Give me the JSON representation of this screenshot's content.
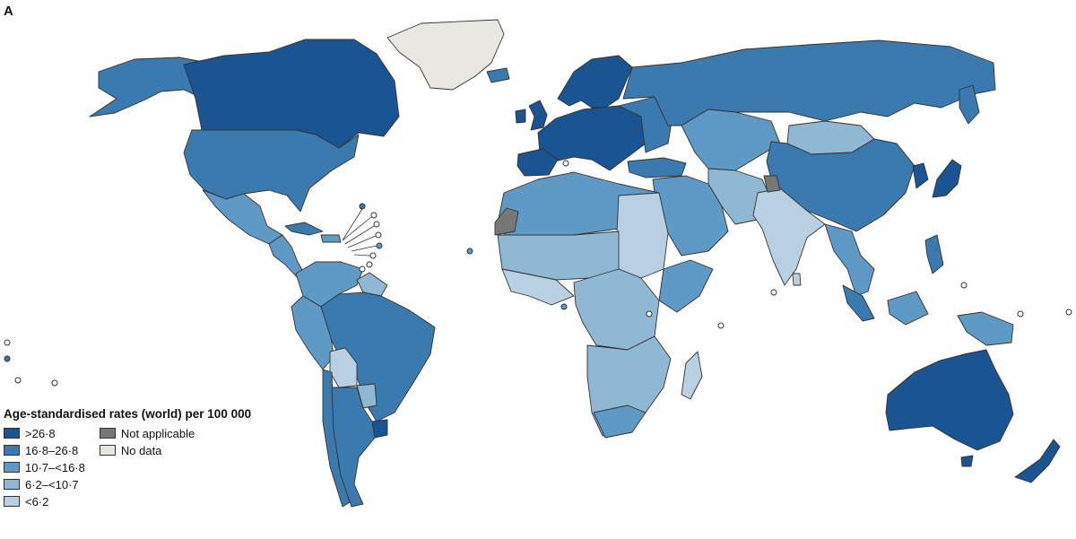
{
  "panel_label": "A",
  "legend": {
    "title": "Age-standardised rates (world) per 100 000",
    "classes": [
      {
        "label": ">26·8",
        "color": "#1a5493"
      },
      {
        "label": "16·8–26·8",
        "color": "#3a7aae"
      },
      {
        "label": "10·7–<16·8",
        "color": "#5f99c5"
      },
      {
        "label": "6·2–<10·7",
        "color": "#8fb8d5"
      },
      {
        "label": "<6·2",
        "color": "#b9d0e3"
      }
    ],
    "other": [
      {
        "label": "Not applicable",
        "color": "#777777"
      },
      {
        "label": "No data",
        "color": "#e8e7e2"
      }
    ]
  }
}
